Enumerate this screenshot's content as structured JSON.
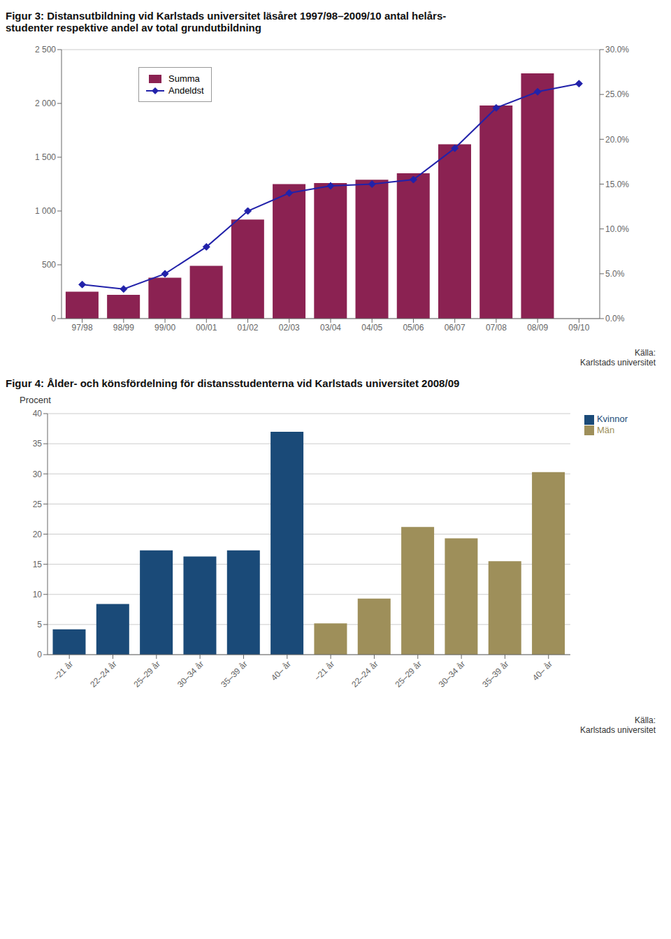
{
  "chart_data": [
    {
      "type": "bar",
      "title": "Figur 3: Distansutbildning vid Karlstads universitet läsåret 1997/98–2009/10 antal helårs-\nstudenter respektive andel av total grundutbildning",
      "categories": [
        "97/98",
        "98/99",
        "99/00",
        "00/01",
        "01/02",
        "02/03",
        "03/04",
        "04/05",
        "05/06",
        "06/07",
        "07/08",
        "08/09",
        "09/10"
      ],
      "series": [
        {
          "name": "Summa",
          "type": "bar",
          "color": "#8b2252",
          "values": [
            250,
            220,
            380,
            490,
            920,
            1250,
            1260,
            1290,
            1350,
            1620,
            1980,
            2280,
            null
          ]
        },
        {
          "name": "Andeldst",
          "type": "line",
          "color": "#2222aa",
          "marker": "diamond",
          "axis": "y2",
          "values": [
            3.8,
            3.3,
            5.0,
            8.0,
            12.0,
            14.0,
            14.8,
            15.0,
            15.5,
            19.0,
            23.5,
            25.3,
            26.2
          ]
        }
      ],
      "ylim": [
        0,
        2500
      ],
      "yticks": [
        0,
        500,
        {
          "value": 1000,
          "label": "1 000"
        },
        {
          "value": 1500,
          "label": "1 500"
        },
        {
          "value": 2000,
          "label": "2 000"
        },
        {
          "value": 2500,
          "label": "2 500"
        }
      ],
      "y2lim": [
        0,
        30
      ],
      "y2ticks": [
        {
          "value": 0,
          "label": "0.0%"
        },
        {
          "value": 5,
          "label": "5.0%"
        },
        {
          "value": 10,
          "label": "10.0%"
        },
        {
          "value": 15,
          "label": "15.0%"
        },
        {
          "value": 20,
          "label": "20.0%"
        },
        {
          "value": 25,
          "label": "25.0%"
        },
        {
          "value": 30,
          "label": "30.0%"
        }
      ],
      "grid": true,
      "legend": "upper left",
      "annotations": [
        "Källa:",
        "Karlstads universitet"
      ]
    },
    {
      "type": "bar",
      "title": "Figur 4: Ålder- och könsfördelning för distansstudenterna vid Karlstads universitet 2008/09",
      "y_label": "Procent",
      "categories": [
        "−21 år",
        "22–24 år",
        "25–29 år",
        "30–34 år",
        "35–39 år",
        "40– år",
        "−21 år",
        "22–24 år",
        "25–29 år",
        "30–34 år",
        "35–39 år",
        "40– år"
      ],
      "series": [
        {
          "name": "Kvinnor",
          "color": "#1a4a78",
          "values": [
            4.2,
            8.4,
            17.3,
            16.3,
            17.3,
            37.0,
            null,
            null,
            null,
            null,
            null,
            null
          ]
        },
        {
          "name": "Män",
          "color": "#9e8f5a",
          "values": [
            null,
            null,
            null,
            null,
            null,
            null,
            5.2,
            9.3,
            21.2,
            19.3,
            15.5,
            30.3
          ]
        }
      ],
      "ylim": [
        0,
        40
      ],
      "yticks": [
        0,
        5,
        10,
        15,
        20,
        25,
        30,
        35,
        40
      ],
      "grid": true,
      "legend": "upper right",
      "annotations": [
        "Källa:",
        "Karlstads universitet"
      ]
    }
  ]
}
